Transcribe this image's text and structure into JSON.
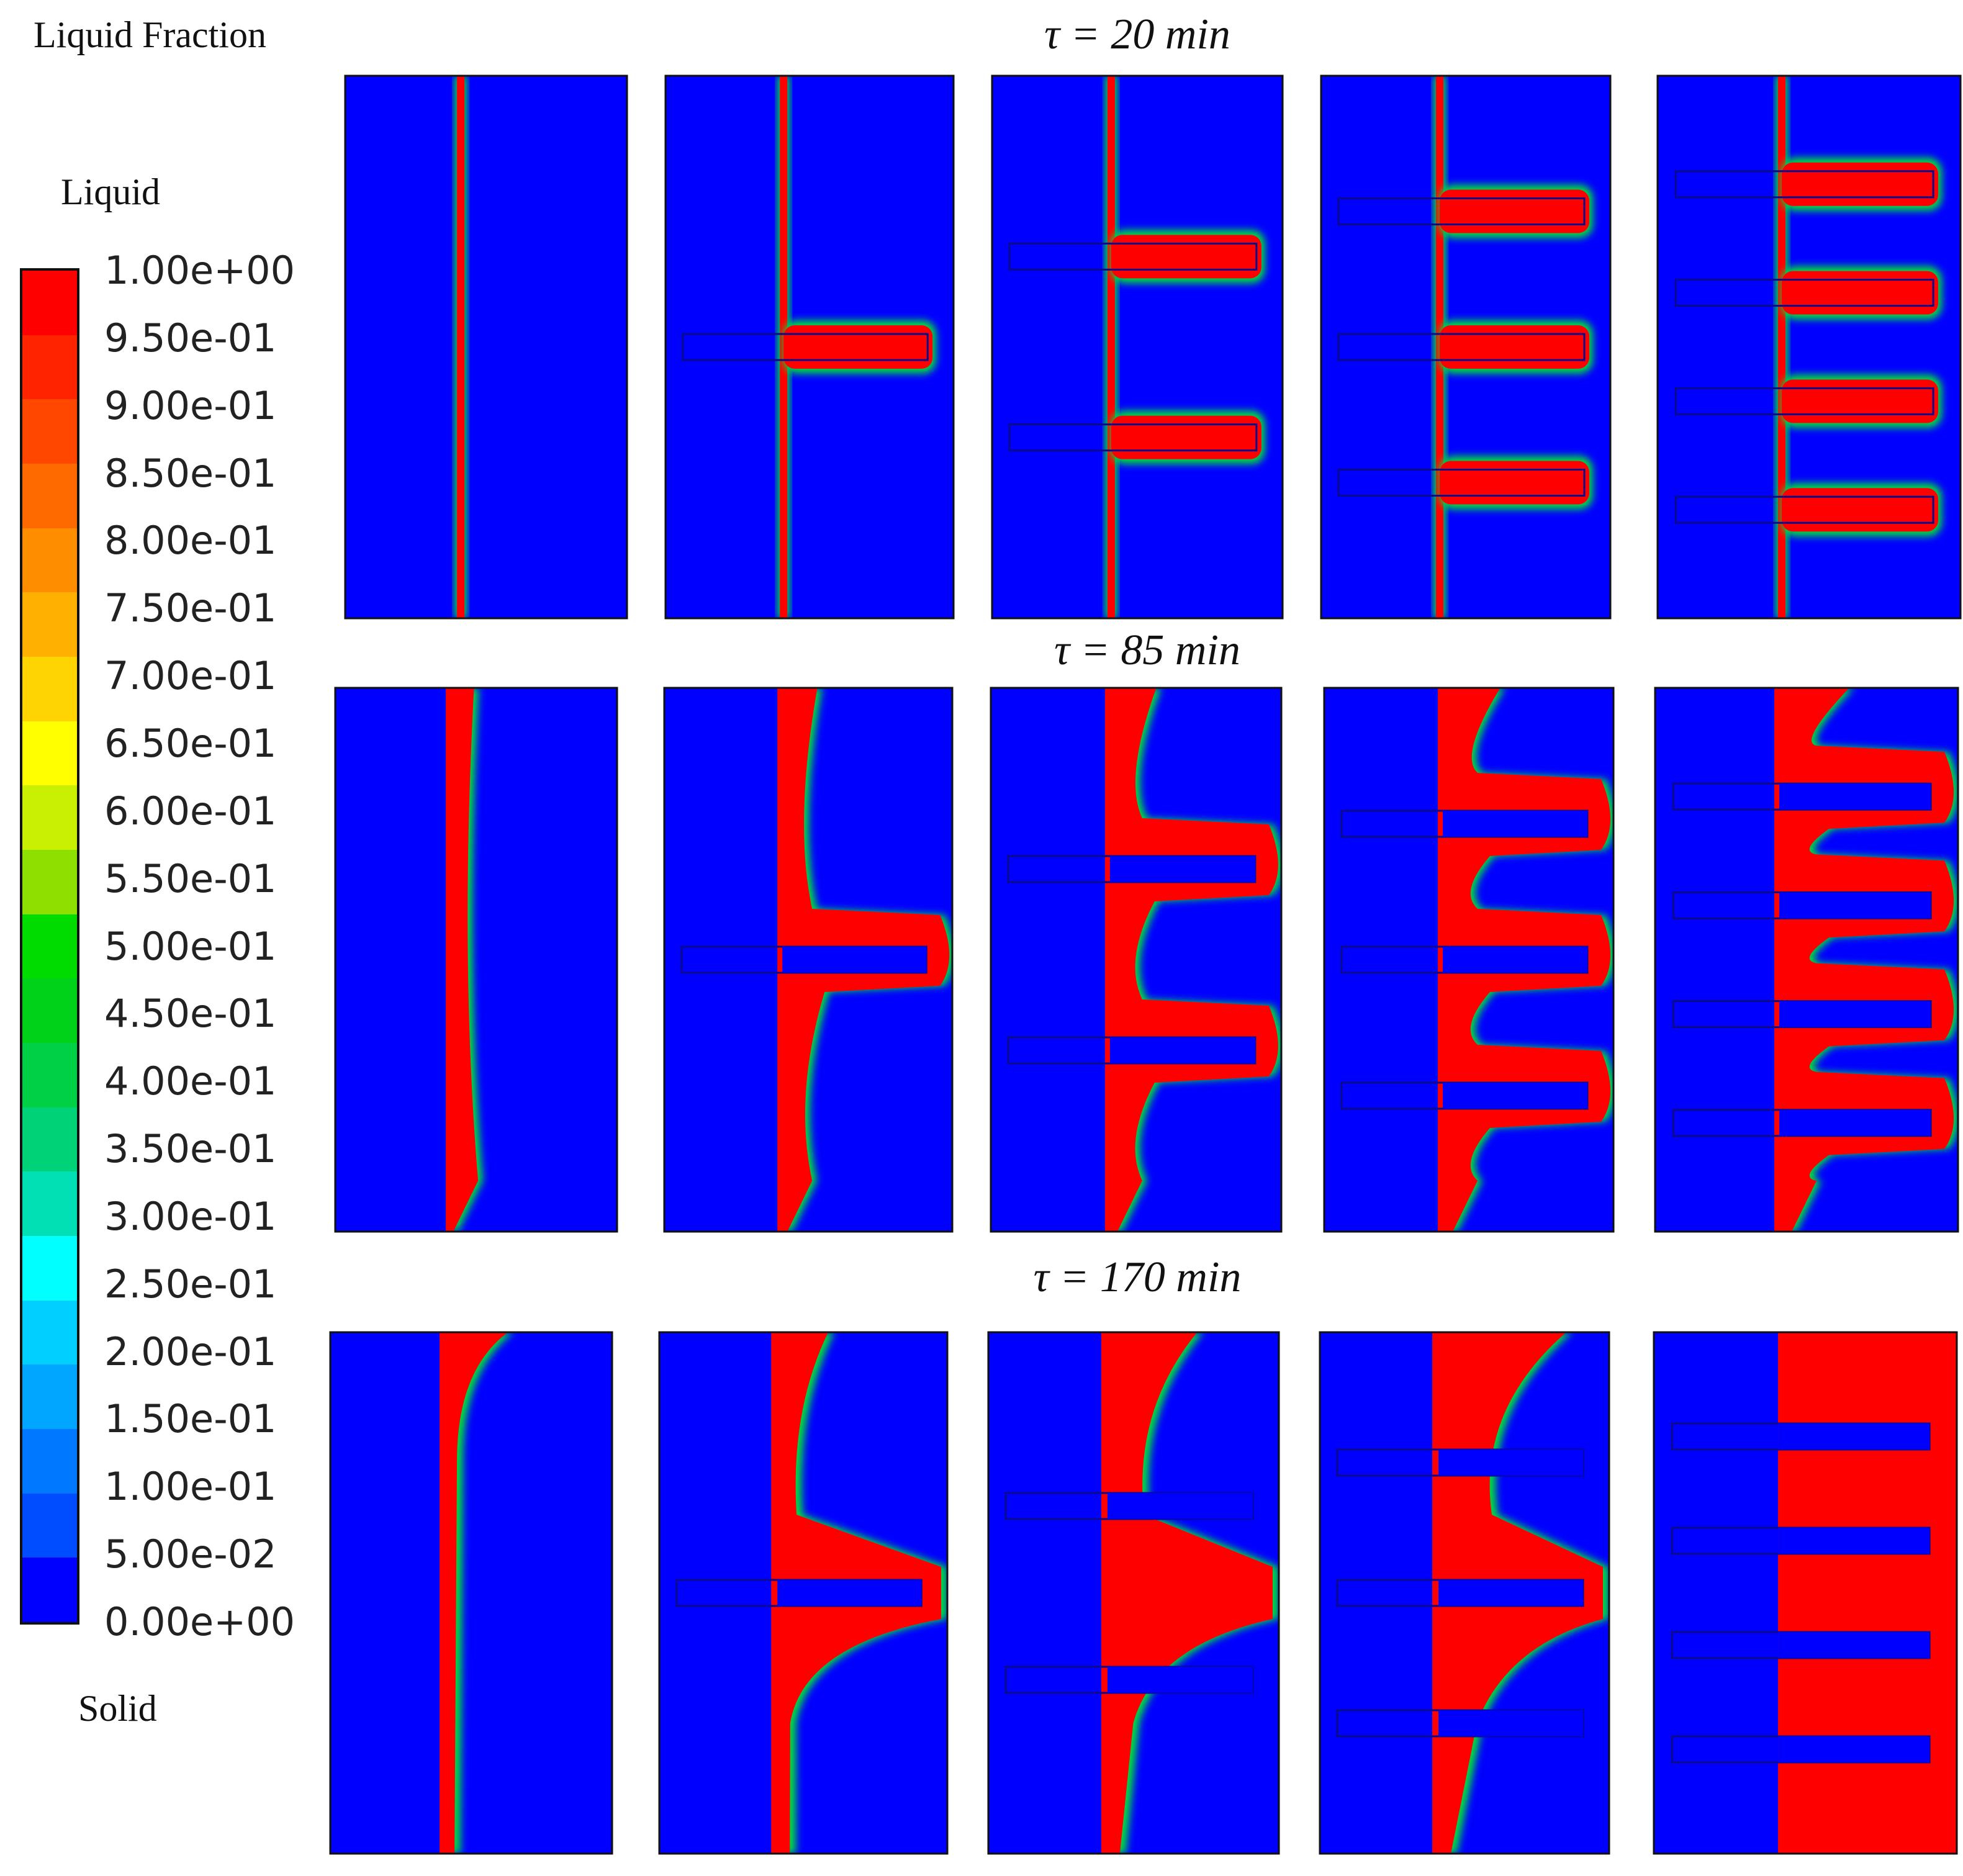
{
  "legend": {
    "title": "Liquid Fraction",
    "top_label": "Liquid",
    "bottom_label": "Solid",
    "ticks": [
      "1.00e+00",
      "9.50e-01",
      "9.00e-01",
      "8.50e-01",
      "8.00e-01",
      "7.50e-01",
      "7.00e-01",
      "6.50e-01",
      "6.00e-01",
      "5.50e-01",
      "5.00e-01",
      "4.50e-01",
      "4.00e-01",
      "3.50e-01",
      "3.00e-01",
      "2.50e-01",
      "2.00e-01",
      "1.50e-01",
      "1.00e-01",
      "5.00e-02",
      "0.00e+00"
    ],
    "colors": [
      "#ff0000",
      "#ff2400",
      "#ff4700",
      "#ff6a00",
      "#ff8d00",
      "#ffb000",
      "#ffd400",
      "#ffff00",
      "#c8f000",
      "#8ee000",
      "#00dc00",
      "#00d21a",
      "#00d046",
      "#00d278",
      "#00e0b4",
      "#00ffff",
      "#00cfff",
      "#00a6ff",
      "#0078ff",
      "#004cff",
      "#0000ff"
    ]
  },
  "rows": [
    {
      "label": "τ = 20 min",
      "time_min": 20
    },
    {
      "label": "τ = 85 min",
      "time_min": 85
    },
    {
      "label": "τ = 170 min",
      "time_min": 170
    }
  ],
  "panel_fin_counts": [
    0,
    1,
    2,
    3,
    4
  ],
  "colors": {
    "solid": "#0000ff",
    "liquid": "#ff0000",
    "mush_green": "#00dc3c",
    "mush_yellow": "#ffff00",
    "mush_cyan": "#00ffff",
    "fin_outline": "#0a0a8a"
  }
}
